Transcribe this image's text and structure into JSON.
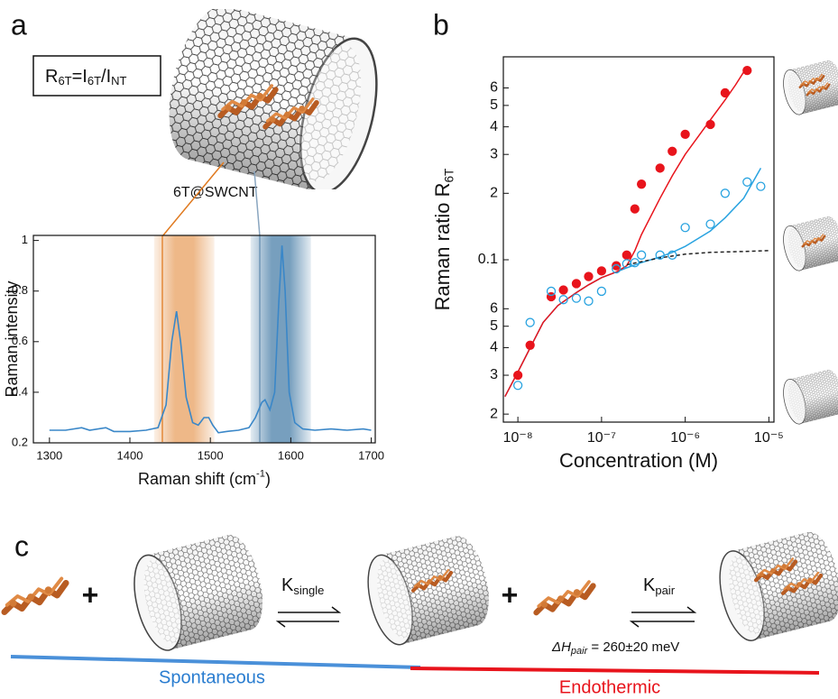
{
  "labels": {
    "a": "a",
    "b": "b",
    "c": "c"
  },
  "formula": [
    "R",
    "6T",
    "=I",
    "6T",
    "/I",
    "NT"
  ],
  "caption_a": "6T@SWCNT",
  "scheme": {
    "plus": "+",
    "k_single": [
      "K",
      "single"
    ],
    "k_pair": [
      "K",
      "pair"
    ],
    "delta_h": [
      "ΔH",
      "pair",
      " = 260±20 meV"
    ],
    "spontaneous": "Spontaneous",
    "endothermic": "Endothermic"
  },
  "chart_data": [
    {
      "type": "line",
      "xlabel": {
        "text": "Raman shift (cm",
        "sup": "-1",
        "tail": ")"
      },
      "ylabel": {
        "text": "Raman intensity"
      },
      "x": [
        1300,
        1320,
        1340,
        1350,
        1370,
        1380,
        1400,
        1420,
        1435,
        1445,
        1452,
        1458,
        1463,
        1470,
        1478,
        1485,
        1492,
        1498,
        1503,
        1510,
        1520,
        1535,
        1548,
        1556,
        1564,
        1568,
        1574,
        1580,
        1585,
        1589,
        1593,
        1598,
        1605,
        1615,
        1630,
        1650,
        1670,
        1690,
        1700
      ],
      "series": [
        {
          "color": "#3a87c8",
          "values": [
            0.25,
            0.25,
            0.26,
            0.25,
            0.26,
            0.245,
            0.245,
            0.25,
            0.26,
            0.35,
            0.6,
            0.72,
            0.6,
            0.38,
            0.28,
            0.27,
            0.3,
            0.3,
            0.27,
            0.24,
            0.245,
            0.25,
            0.26,
            0.3,
            0.36,
            0.37,
            0.33,
            0.4,
            0.75,
            0.98,
            0.8,
            0.4,
            0.28,
            0.255,
            0.25,
            0.255,
            0.25,
            0.255,
            0.25
          ]
        }
      ],
      "highlights": [
        {
          "range": [
            1430,
            1505
          ],
          "color": "#e8a060"
        },
        {
          "range": [
            1550,
            1625
          ],
          "color": "#4a7fa8"
        }
      ],
      "xlim": [
        1280,
        1705
      ],
      "ylim": [
        0.2,
        1.02
      ],
      "xticks": [
        1300,
        1400,
        1500,
        1600,
        1700
      ],
      "yticks": [
        0.2,
        0.4,
        0.6,
        0.8,
        1
      ]
    },
    {
      "type": "scatter",
      "log_x": true,
      "log_y": true,
      "xlabel": {
        "text": "Concentration (M)"
      },
      "ylabel": {
        "text": "Raman ratio R",
        "sub": "6T"
      },
      "series": [
        {
          "marker": "filled",
          "color": "#e8141c",
          "x": [
            1e-08,
            1.4e-08,
            2.5e-08,
            3.5e-08,
            5e-08,
            7e-08,
            1e-07,
            1.5e-07,
            2e-07,
            2.5e-07,
            3e-07,
            5e-07,
            7e-07,
            1e-06,
            2e-06,
            3e-06,
            5.5e-06
          ],
          "values": [
            0.03,
            0.041,
            0.068,
            0.073,
            0.078,
            0.084,
            0.089,
            0.094,
            0.105,
            0.17,
            0.22,
            0.26,
            0.31,
            0.37,
            0.41,
            0.57,
            0.72
          ]
        },
        {
          "marker": "open",
          "color": "#29a3e0",
          "x": [
            1e-08,
            1.4e-08,
            2.5e-08,
            3.5e-08,
            5e-08,
            7e-08,
            1e-07,
            1.5e-07,
            2e-07,
            2.5e-07,
            3e-07,
            5e-07,
            7e-07,
            1e-06,
            2e-06,
            3e-06,
            5.5e-06,
            8e-06
          ],
          "values": [
            0.027,
            0.052,
            0.072,
            0.066,
            0.067,
            0.065,
            0.072,
            0.091,
            0.096,
            0.097,
            0.105,
            0.105,
            0.105,
            0.14,
            0.145,
            0.2,
            0.225,
            0.215
          ]
        }
      ],
      "fits": [
        {
          "color": "#29a3e0",
          "dashed": false,
          "x": [
            7e-09,
            1e-08,
            1.5e-08,
            2e-08,
            3e-08,
            5e-08,
            7e-08,
            1e-07,
            1.5e-07,
            2e-07,
            3e-07,
            5e-07,
            7e-07,
            1e-06,
            2e-06,
            3e-06,
            5e-06,
            8e-06
          ],
          "values": [
            0.024,
            0.031,
            0.042,
            0.052,
            0.062,
            0.071,
            0.077,
            0.083,
            0.088,
            0.092,
            0.097,
            0.103,
            0.108,
            0.115,
            0.135,
            0.155,
            0.19,
            0.26
          ]
        },
        {
          "color": "#e8141c",
          "dashed": false,
          "x": [
            7e-09,
            1e-08,
            1.5e-08,
            2e-08,
            3e-08,
            5e-08,
            7e-08,
            1e-07,
            1.5e-07,
            2e-07,
            2.5e-07,
            3e-07,
            5e-07,
            7e-07,
            1e-06,
            2e-06,
            3e-06,
            4e-06,
            5.5e-06
          ],
          "values": [
            0.024,
            0.031,
            0.042,
            0.052,
            0.062,
            0.071,
            0.077,
            0.083,
            0.088,
            0.094,
            0.11,
            0.13,
            0.19,
            0.24,
            0.3,
            0.43,
            0.53,
            0.62,
            0.75
          ]
        },
        {
          "color": "#222222",
          "dashed": true,
          "x": [
            2e-07,
            5e-07,
            1e-06,
            2e-06,
            5e-06,
            1e-05
          ],
          "values": [
            0.095,
            0.102,
            0.106,
            0.108,
            0.109,
            0.11
          ]
        }
      ],
      "xlim": [
        6.7e-09,
        1.15e-05
      ],
      "ylim": [
        0.0184,
        0.83
      ],
      "xticks": [
        {
          "value": 1e-08,
          "label": "10⁻⁸"
        },
        {
          "value": 1e-07,
          "label": "10⁻⁷"
        },
        {
          "value": 1e-06,
          "label": "10⁻⁶"
        },
        {
          "value": 1e-05,
          "label": "10⁻⁵"
        }
      ],
      "yticks": [
        {
          "value": 0.02,
          "label": "2"
        },
        {
          "value": 0.03,
          "label": "3"
        },
        {
          "value": 0.04,
          "label": "4"
        },
        {
          "value": 0.05,
          "label": "5"
        },
        {
          "value": 0.06,
          "label": "6"
        },
        0.1,
        {
          "value": 0.2,
          "label": "2"
        },
        {
          "value": 0.3,
          "label": "3"
        },
        {
          "value": 0.4,
          "label": "4"
        },
        {
          "value": 0.5,
          "label": "5"
        },
        {
          "value": 0.6,
          "label": "6"
        }
      ]
    }
  ]
}
